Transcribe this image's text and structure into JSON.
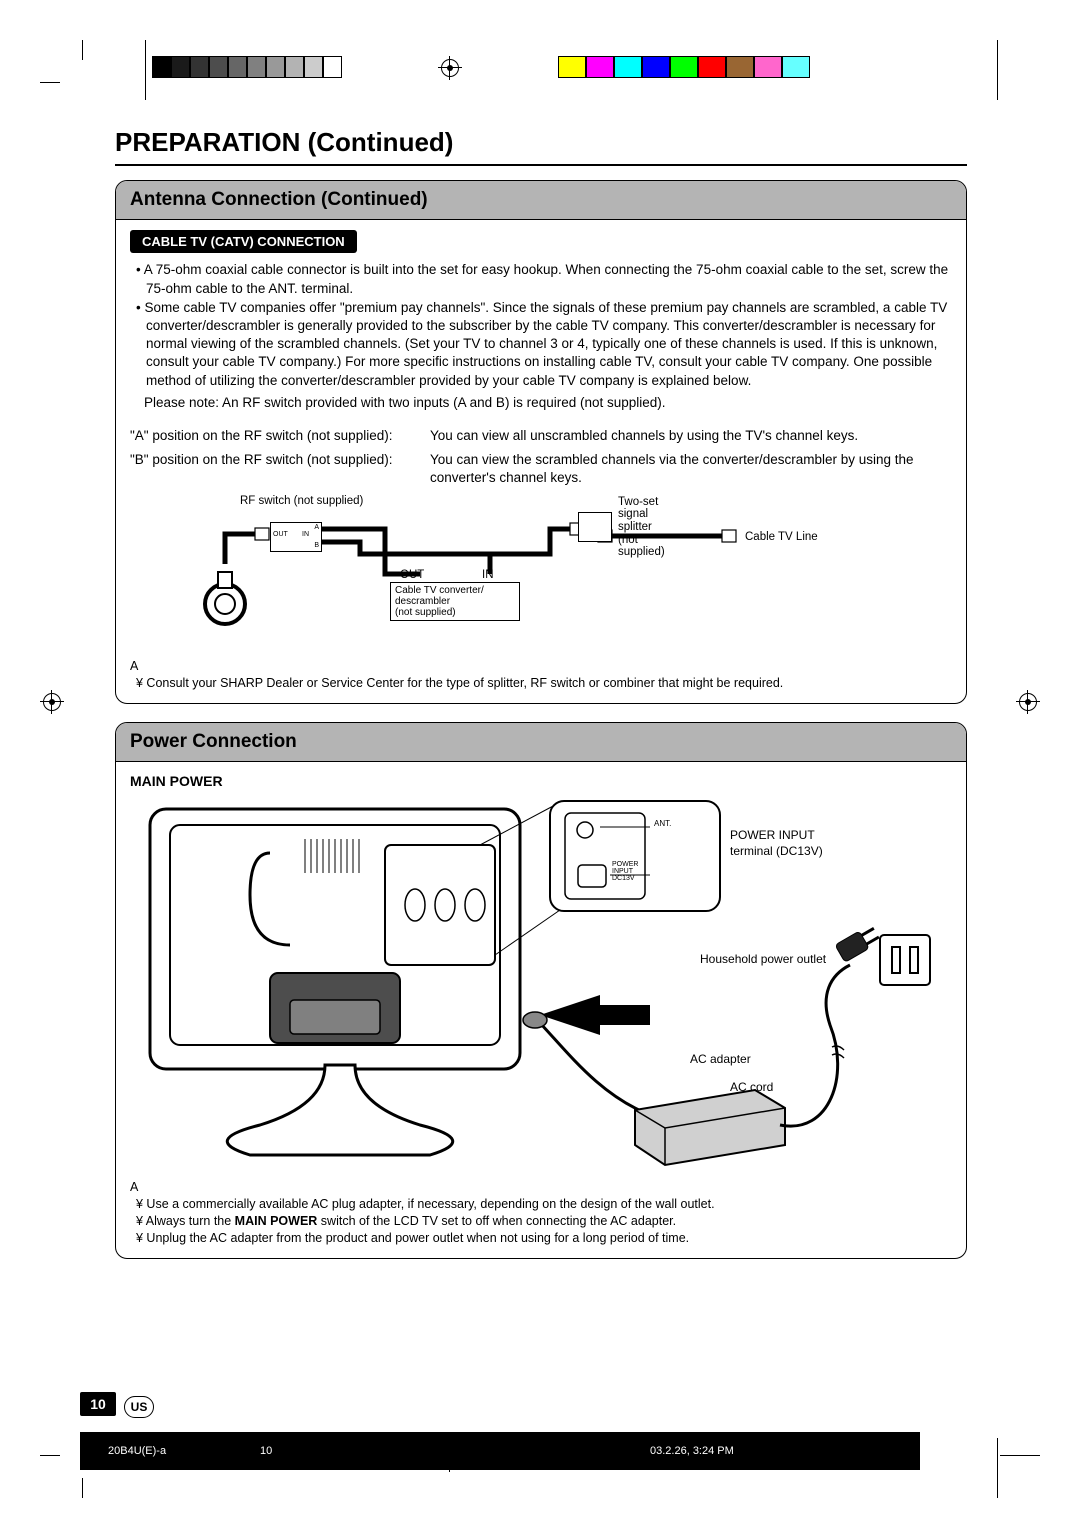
{
  "printmarks": {
    "gray_swatches": [
      "#000000",
      "#1a1a1a",
      "#333333",
      "#4d4d4d",
      "#666666",
      "#808080",
      "#999999",
      "#b3b3b3",
      "#cccccc",
      "#ffffff"
    ],
    "color_swatches": [
      "#ffff00",
      "#ff00ff",
      "#00ffff",
      "#0000ff",
      "#00ff00",
      "#ff0000",
      "#996633",
      "#ff66cc",
      "#66ffff"
    ]
  },
  "page_title": "PREPARATION (Continued)",
  "section1": {
    "header": "Antenna Connection (Continued)",
    "pill": "CABLE TV (CATV) CONNECTION",
    "b1": "• A 75-ohm coaxial cable connector is built into the set for easy hookup. When connecting the 75-ohm coaxial cable to the set, screw the 75-ohm cable to the ANT. terminal.",
    "b2": "• Some cable TV companies offer \"premium pay channels\". Since the signals of these premium pay channels are scrambled, a cable TV converter/descrambler is generally provided to the subscriber by the cable TV company. This converter/descrambler is necessary for normal viewing of the scrambled channels. (Set your TV to channel 3 or 4, typically one of these channels is used. If this is unknown, consult your cable TV company.) For more specific instructions on installing cable TV, consult your cable TV company. One possible method of utilizing the converter/descrambler provided by your cable TV company is explained below.",
    "b3": "Please note: An RF switch provided with two inputs (A and B) is required (not supplied).",
    "posA_label": "\"A\" position on the RF switch (not supplied):",
    "posA_desc": "You can view all unscrambled channels by using the TV's channel keys.",
    "posB_label": "\"B\" position on the RF switch (not supplied):",
    "posB_desc": "You can view the scrambled channels via the converter/descrambler by using the converter's channel keys.",
    "diagram": {
      "rf_switch": "RF switch (not supplied)",
      "rf_out": "OUT",
      "rf_in": "IN",
      "rf_a": "A",
      "rf_b": "B",
      "out": "OUT",
      "in": "IN",
      "converter": "Cable TV converter/\ndescrambler\n(not supplied)",
      "splitter": "Two-set\nsignal\nsplitter\n(not\nsupplied)",
      "cable_line": "Cable TV Line"
    },
    "note_symbol": "A",
    "note1": "¥ Consult your SHARP Dealer or Service Center for the type of splitter, RF switch or combiner that might be required."
  },
  "section2": {
    "header": "Power Connection",
    "subhead": "MAIN POWER",
    "labels": {
      "ant": "ANT.",
      "power_input_tiny": "POWER\nINPUT\nDC13V",
      "power_input": "POWER INPUT\nterminal (DC13V)",
      "outlet": "Household power outlet",
      "adapter": "AC adapter",
      "cord": "AC cord"
    },
    "note_symbol": "A",
    "note1": "¥ Use a commercially available AC plug adapter, if necessary, depending on the design of the wall outlet.",
    "note2_a": "¥ Always turn the ",
    "note2_b": "MAIN POWER",
    "note2_c": " switch of the LCD TV set to off when connecting the AC adapter.",
    "note3": "¥ Unplug the AC adapter from the product and power outlet when not using for a long period of time."
  },
  "footer": {
    "page_number": "10",
    "region": "US",
    "file": "20B4U(E)-a",
    "page": "10",
    "timestamp": "03.2.26, 3:24 PM"
  }
}
